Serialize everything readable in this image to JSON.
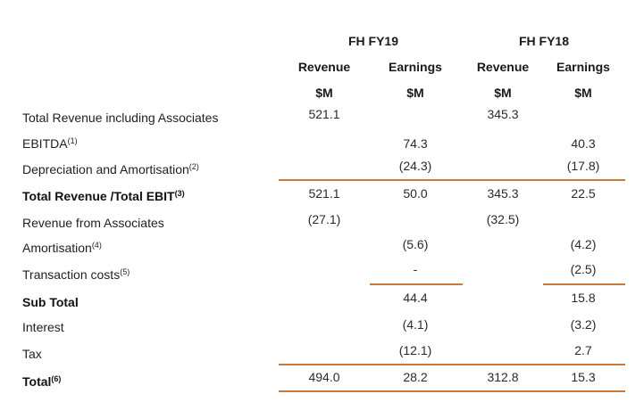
{
  "header": {
    "periods": [
      "FH FY19",
      "FH FY18"
    ],
    "columns": [
      "Revenue",
      "Earnings",
      "Revenue",
      "Earnings"
    ],
    "units": [
      "$M",
      "$M",
      "$M",
      "$M"
    ]
  },
  "rows": [
    {
      "label": "Total Revenue including Associates",
      "sup": "",
      "bold": false,
      "values": [
        "521.1",
        "",
        "345.3",
        ""
      ]
    },
    {
      "label": "EBITDA",
      "sup": "(1)",
      "bold": false,
      "values": [
        "",
        "74.3",
        "",
        "40.3"
      ]
    },
    {
      "label": "Depreciation and Amortisation",
      "sup": "(2)",
      "bold": false,
      "values": [
        "",
        "(24.3)",
        "",
        "(17.8)"
      ]
    },
    {
      "label": "Total Revenue /Total EBIT",
      "sup": "(3)",
      "bold": true,
      "values": [
        "521.1",
        "50.0",
        "345.3",
        "22.5"
      ]
    },
    {
      "label": "Revenue from Associates",
      "sup": "",
      "bold": false,
      "values": [
        "(27.1)",
        "",
        "(32.5)",
        ""
      ]
    },
    {
      "label": "Amortisation",
      "sup": "(4)",
      "bold": false,
      "values": [
        "",
        "(5.6)",
        "",
        "(4.2)"
      ]
    },
    {
      "label": "Transaction costs",
      "sup": "(5)",
      "bold": false,
      "values": [
        "",
        "-",
        "",
        "(2.5)"
      ]
    },
    {
      "label": "Sub Total",
      "sup": "",
      "bold": true,
      "values": [
        "",
        "44.4",
        "",
        "15.8"
      ]
    },
    {
      "label": "Interest",
      "sup": "",
      "bold": false,
      "values": [
        "",
        "(4.1)",
        "",
        "(3.2)"
      ]
    },
    {
      "label": "Tax",
      "sup": "",
      "bold": false,
      "values": [
        "",
        "(12.1)",
        "",
        "2.7"
      ]
    },
    {
      "label": "Total",
      "sup": "(6)",
      "bold": true,
      "values": [
        "494.0",
        "28.2",
        "312.8",
        "15.3"
      ]
    }
  ],
  "colors": {
    "rule": "#c77a3a"
  }
}
